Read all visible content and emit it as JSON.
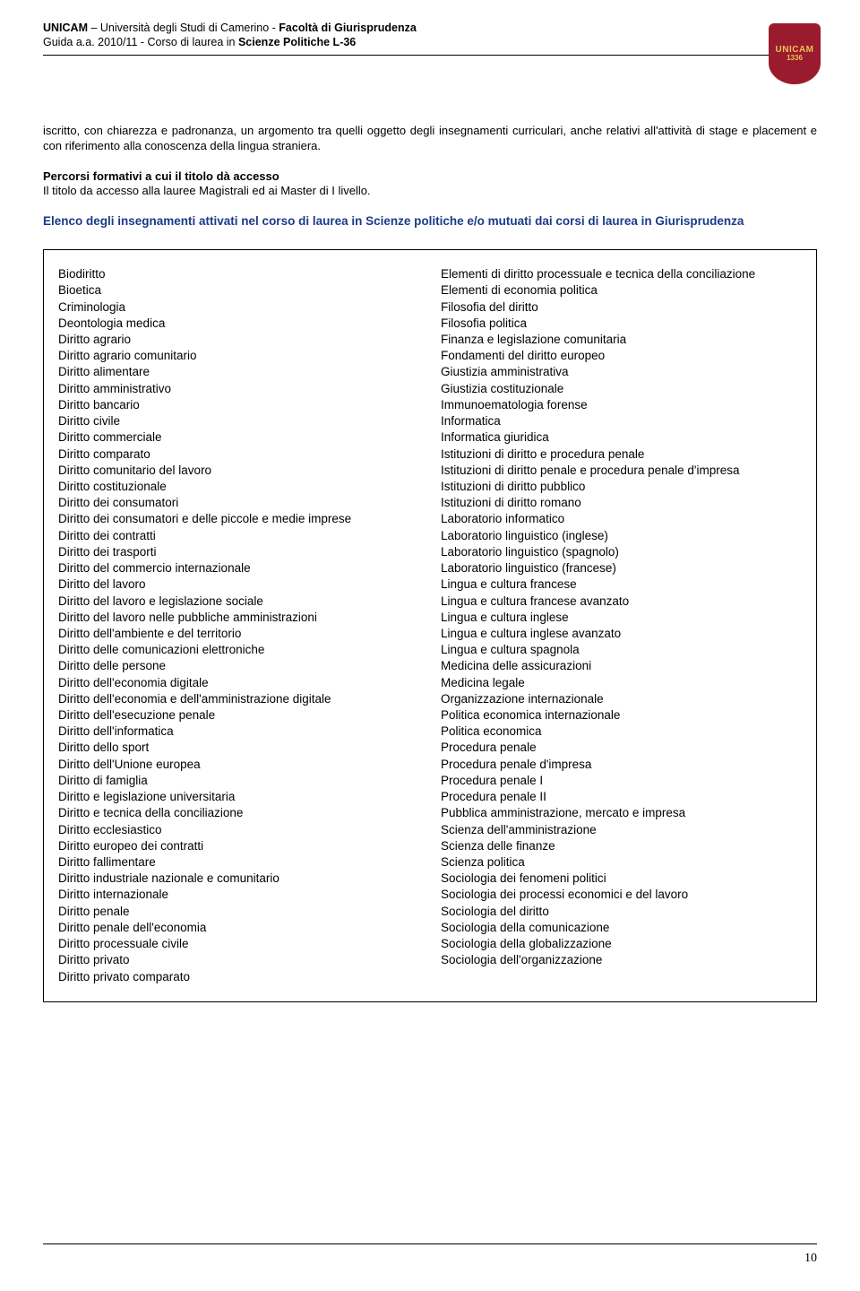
{
  "header": {
    "uni_code": "UNICAM",
    "uni_name": " – Università degli Studi di Camerino - ",
    "faculty": "Facoltà di Giurisprudenza",
    "guide": "Guida a.a. 2010/11 - Corso di laurea in ",
    "course": "Scienze Politiche L-36"
  },
  "logo": {
    "line1": "UNICAM",
    "line2": "1336"
  },
  "para1_prefix": "iscritto, con chiarezza e padronanza, un argomento tra quelli oggetto degli insegnamenti curriculari, anche relativi all'attività di stage e placement e con riferimento alla conoscenza della lingua straniera.",
  "section2_title": "Percorsi formativi a cui il titolo dà accesso",
  "section2_body": "Il titolo da accesso  alla lauree Magistrali ed ai Master di I livello.",
  "blue_heading": "Elenco degli insegnamenti attivati nel corso di laurea in Scienze politiche e/o mutuati dai corsi di laurea in Giurisprudenza",
  "left_col": [
    "Biodiritto",
    "Bioetica",
    "Criminologia",
    "Deontologia medica",
    "Diritto agrario",
    "Diritto agrario comunitario",
    "Diritto alimentare",
    "Diritto amministrativo",
    "Diritto bancario",
    "Diritto civile",
    "Diritto commerciale",
    "Diritto comparato",
    "Diritto comunitario del lavoro",
    "Diritto costituzionale",
    "Diritto dei consumatori",
    "Diritto dei consumatori e delle piccole e medie imprese",
    "Diritto dei contratti",
    "Diritto dei trasporti",
    "Diritto del commercio internazionale",
    "Diritto del lavoro",
    "Diritto del lavoro e legislazione sociale",
    "Diritto del lavoro nelle pubbliche amministrazioni",
    "Diritto dell'ambiente e del territorio",
    "Diritto delle comunicazioni elettroniche",
    "Diritto delle persone",
    "Diritto dell'economia  digitale",
    "Diritto dell'economia e dell'amministrazione digitale",
    "Diritto dell'esecuzione penale",
    "Diritto dell'informatica",
    "Diritto dello sport",
    "Diritto dell'Unione europea",
    "Diritto di famiglia",
    "Diritto e legislazione universitaria",
    "Diritto e tecnica della conciliazione",
    "Diritto ecclesiastico",
    "Diritto europeo dei contratti",
    "Diritto fallimentare",
    "Diritto industriale nazionale e comunitario",
    "Diritto internazionale",
    "Diritto penale",
    "Diritto penale dell'economia",
    "Diritto processuale civile",
    "Diritto privato",
    "Diritto privato comparato"
  ],
  "right_col": [
    "Elementi di diritto processuale e tecnica della conciliazione",
    "Elementi di economia politica",
    "Filosofia del diritto",
    "Filosofia politica",
    "Finanza e legislazione comunitaria",
    "Fondamenti del diritto europeo",
    "Giustizia amministrativa",
    "Giustizia costituzionale",
    "Immunoematologia forense",
    "Informatica",
    "Informatica giuridica",
    "Istituzioni di diritto e procedura penale",
    "Istituzioni di diritto penale e procedura penale d'impresa",
    "Istituzioni di diritto pubblico",
    "Istituzioni di diritto romano",
    "Laboratorio informatico",
    "Laboratorio linguistico (inglese)",
    "Laboratorio linguistico (spagnolo)",
    "Laboratorio linguistico (francese)",
    "Lingua e cultura francese",
    "Lingua e cultura francese avanzato",
    "Lingua e cultura inglese",
    "Lingua e cultura inglese avanzato",
    "Lingua e cultura spagnola",
    "Medicina delle assicurazioni",
    "Medicina legale",
    "Organizzazione internazionale",
    "Politica  economica internazionale",
    "Politica economica",
    "Procedura penale",
    "Procedura penale d'impresa",
    "Procedura penale I",
    "Procedura penale II",
    "Pubblica amministrazione, mercato e impresa",
    "Scienza dell'amministrazione",
    "Scienza delle finanze",
    "Scienza politica",
    "Sociologia dei fenomeni politici",
    "Sociologia dei processi economici e del lavoro",
    "Sociologia del diritto",
    "Sociologia della comunicazione",
    "Sociologia della globalizzazione",
    "Sociologia dell'organizzazione"
  ],
  "page_number": "10"
}
